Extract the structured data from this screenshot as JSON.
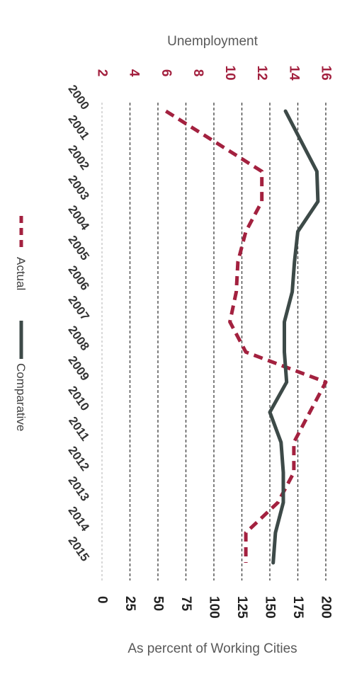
{
  "chart_data": {
    "type": "line",
    "orientation": "rotated-90-clockwise",
    "x": [
      "2000",
      "2001",
      "2002",
      "2003",
      "2004",
      "2005",
      "2006",
      "2007",
      "2008",
      "2009",
      "2010",
      "2011",
      "2012",
      "2013",
      "2014",
      "2015"
    ],
    "series": [
      {
        "name": "Actual",
        "axis": "Unemployment",
        "style": "dashed",
        "color": "#a3213f",
        "values": [
          6.0,
          9.0,
          12.0,
          12.0,
          11.0,
          10.5,
          10.4,
          10.0,
          11.0,
          16.0,
          15.0,
          14.0,
          14.0,
          13.0,
          11.0,
          11.0
        ]
      },
      {
        "name": "Comparative",
        "axis": "As percent of Working Cities",
        "style": "solid",
        "color": "#3d4a48",
        "values": [
          164,
          178,
          192,
          193,
          175,
          172,
          170,
          163,
          163,
          165,
          150,
          160,
          162,
          162,
          155,
          153
        ]
      }
    ],
    "axes": {
      "top": {
        "title": "Unemployment",
        "ticks": [
          "2",
          "4",
          "6",
          "8",
          "10",
          "12",
          "14",
          "16"
        ],
        "range": [
          2,
          16
        ],
        "color": "#a3213f"
      },
      "bottom": {
        "title": "As percent of Working Cities",
        "ticks": [
          "0",
          "25",
          "50",
          "75",
          "100",
          "125",
          "150",
          "175",
          "200"
        ],
        "range": [
          0,
          200
        ],
        "color": "#222222"
      }
    },
    "grid": true,
    "legend": "left"
  },
  "legend": {
    "actual_label": "Actual",
    "comparative_label": "Comparative"
  }
}
